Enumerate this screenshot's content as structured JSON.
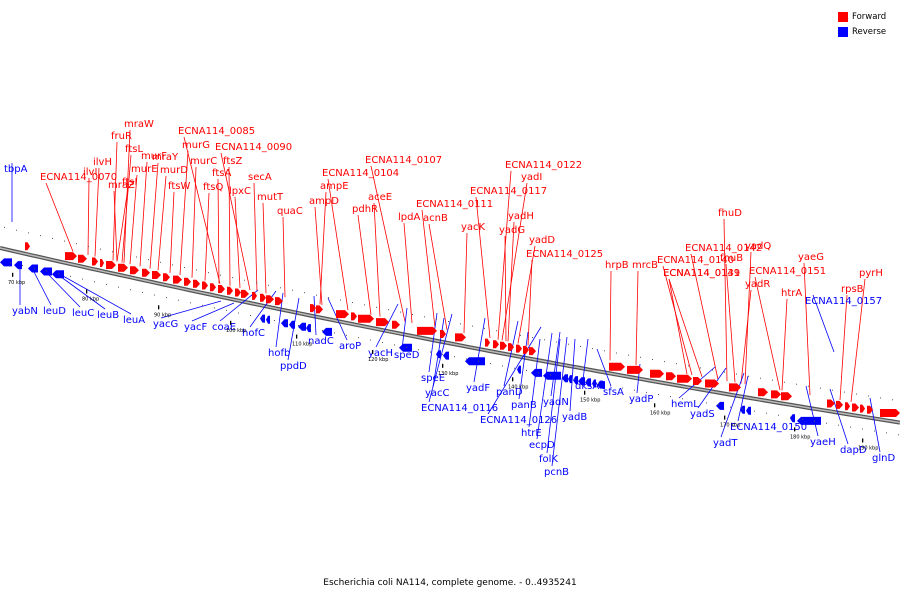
{
  "title": "Escherichia coli NA114, complete genome. - 0..4935241",
  "legend": [
    {
      "label": "Forward",
      "color": "#ff0000"
    },
    {
      "label": "Reverse",
      "color": "#0000ff"
    }
  ],
  "tick_labels": [
    "70 kbp",
    "80 kbp",
    "90 kbp",
    "100 kbp",
    "110 kbp",
    "120 kbp",
    "130 kbp",
    "140 kbp",
    "150 kbp",
    "160 kbp",
    "170 kbp",
    "180 kbp",
    "190 kbp"
  ],
  "forward_genes": [
    "mraW",
    "fruR",
    "ftsL",
    "ilvH",
    "ilvI",
    "mraZ",
    "ECNA114_0070",
    "ftsI",
    "murE",
    "murF",
    "mraY",
    "murD",
    "murG",
    "ftsW",
    "murC",
    "ECNA114_0085",
    "ftsQ",
    "ftsA",
    "ftsZ",
    "lpxC",
    "ECNA114_0090",
    "secA",
    "mutT",
    "quaC",
    "ampE",
    "ampD",
    "ECNA114_0104",
    "aceE",
    "pdhR",
    "ECNA114_0107",
    "lpdA",
    "acnB",
    "ECNA114_0111",
    "yacK",
    "ECNA114_0117",
    "ECNA114_0122",
    "yadI",
    "yadH",
    "yadG",
    "yadD",
    "ECNA114_0125",
    "hrpB",
    "mrcB",
    "ECNA114_0139",
    "ECNA114_0140",
    "ECNA114_0142",
    "fhuD",
    "ECNA114_0141",
    "fhuB",
    "yadQ",
    "yadR",
    "ECNA114_0151",
    "htrA",
    "yaeG",
    "rpsB",
    "pyrH"
  ],
  "reverse_genes": [
    "tbpA",
    "yabN",
    "leuD",
    "leuC",
    "leuB",
    "leuA",
    "yacG",
    "yacF",
    "coaE",
    "hofC",
    "hofb",
    "ppdD",
    "nadC",
    "aroP",
    "yacH",
    "speD",
    "speE",
    "yacC",
    "ECNA114_0116",
    "yadF",
    "panD",
    "panB",
    "ECNA114_0126",
    "htrE",
    "ecpD",
    "folK",
    "pcnB",
    "yadN",
    "yadB",
    "dksA",
    "sfsA",
    "yadP",
    "hemL",
    "yadS",
    "yadT",
    "ECNA114_0150",
    "ECNA114_0157",
    "yaeH",
    "dapD",
    "glnD"
  ],
  "colors": {
    "forward": "#ff0000",
    "reverse": "#0000ff",
    "backbone": "#888888"
  }
}
